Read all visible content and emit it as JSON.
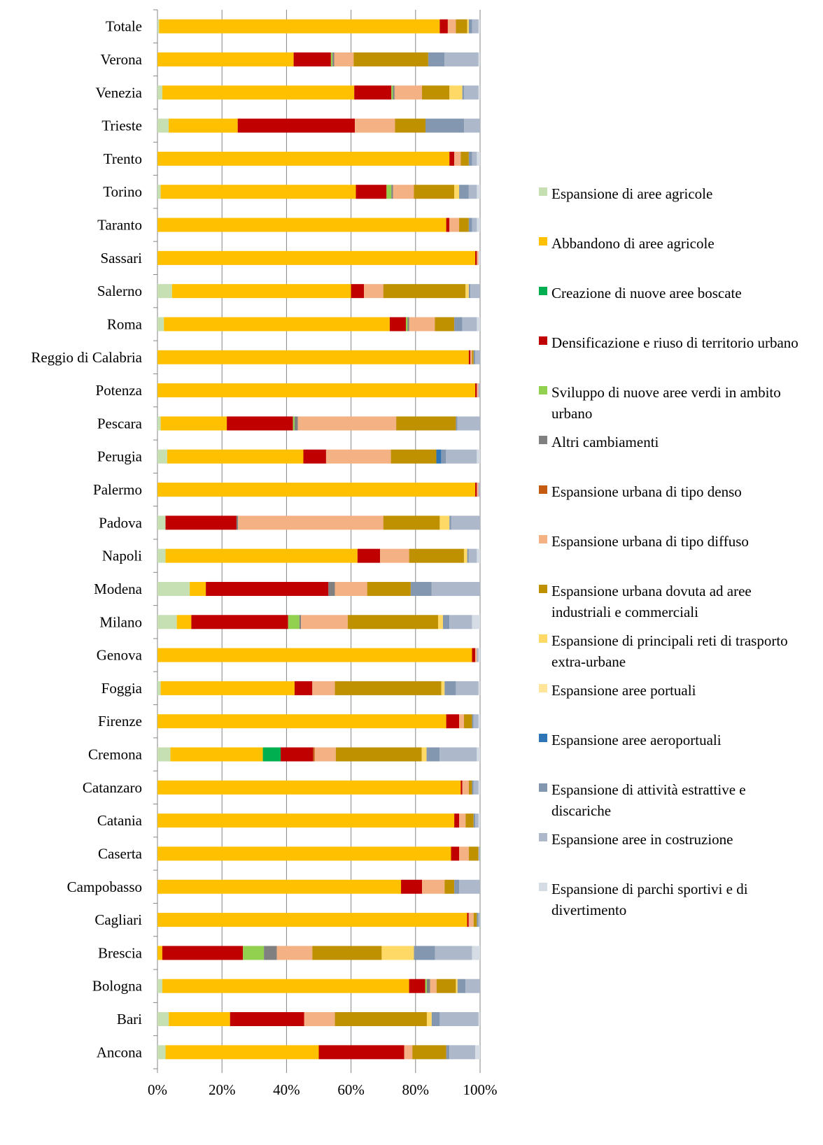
{
  "chart_data": {
    "type": "bar",
    "orientation": "horizontal",
    "stacked": "percent",
    "xlim": [
      0,
      100
    ],
    "x_ticks": [
      "0%",
      "20%",
      "40%",
      "60%",
      "80%",
      "100%"
    ],
    "grid": "vertical major gridlines",
    "legend_position": "right",
    "categories": [
      "Totale",
      "Verona",
      "Venezia",
      "Trieste",
      "Trento",
      "Torino",
      "Taranto",
      "Sassari",
      "Salerno",
      "Roma",
      "Reggio di Calabria",
      "Potenza",
      "Pescara",
      "Perugia",
      "Palermo",
      "Padova",
      "Napoli",
      "Modena",
      "Milano",
      "Genova",
      "Foggia",
      "Firenze",
      "Cremona",
      "Catanzaro",
      "Catania",
      "Caserta",
      "Campobasso",
      "Cagliari",
      "Brescia",
      "Bologna",
      "Bari",
      "Ancona"
    ],
    "series": [
      {
        "name": "Espansione di aree agricole",
        "color": "#c6e0b4",
        "values": [
          0.5,
          0,
          1.5,
          3.5,
          0,
          1,
          0,
          0,
          4.5,
          2,
          0,
          0,
          1,
          3,
          0,
          2.5,
          2.5,
          10,
          6,
          0,
          1,
          0,
          4,
          0,
          0,
          0,
          0,
          0,
          0,
          1.5,
          3.5,
          2.5
        ]
      },
      {
        "name": "Abbandono di aree agricole",
        "color": "#ffc000",
        "values": [
          87,
          42,
          59.5,
          21.5,
          90.5,
          60.5,
          89.5,
          98,
          55.5,
          70,
          96.5,
          98,
          20.5,
          42,
          98,
          0,
          59.5,
          5,
          4.5,
          97.5,
          41.5,
          89.5,
          28.5,
          94,
          92,
          91,
          75.5,
          95.5,
          1.5,
          76.5,
          19,
          47.5
        ]
      },
      {
        "name": "Creazione di nuove aree boscate",
        "color": "#00b050",
        "values": [
          0,
          0,
          0,
          0,
          0,
          0,
          0,
          0,
          0,
          0,
          0,
          0,
          0,
          0,
          0,
          0,
          0,
          0,
          0,
          0,
          0,
          0,
          5.5,
          0,
          0,
          0,
          0,
          0,
          0,
          0,
          0,
          0
        ]
      },
      {
        "name": "Densificazione e riuso di territorio urbano",
        "color": "#c00000",
        "values": [
          2.5,
          11.5,
          11.5,
          36.5,
          1.5,
          9.5,
          1,
          0.5,
          4,
          5,
          0.5,
          0.5,
          20.5,
          7,
          0.5,
          22,
          7,
          38,
          30,
          1,
          5.5,
          4,
          10,
          0.5,
          1.5,
          2.5,
          6.5,
          0.5,
          25,
          5,
          23,
          26.5
        ]
      },
      {
        "name": "Sviluppo di nuove aree verdi in ambito urbano",
        "color": "#92d050",
        "values": [
          0,
          0.5,
          0.5,
          0,
          0,
          1.5,
          0,
          0,
          0,
          0.5,
          0,
          0,
          0.5,
          0,
          0,
          0,
          0,
          0,
          3.5,
          0,
          0,
          0,
          0,
          0,
          0,
          0,
          0,
          0,
          6.5,
          0.5,
          0,
          0
        ]
      },
      {
        "name": "Altri cambiamenti",
        "color": "#808080",
        "values": [
          0,
          0.5,
          0.5,
          0,
          0,
          0.5,
          0,
          0,
          0,
          0.5,
          0,
          0,
          1,
          0,
          0,
          0.5,
          0,
          2,
          0.5,
          0,
          0,
          0,
          0,
          0,
          0,
          0,
          0,
          0,
          4,
          1,
          0,
          0
        ]
      },
      {
        "name": "Espansione urbana di tipo denso",
        "color": "#c55a11",
        "values": [
          0,
          0,
          0,
          0,
          0,
          0,
          0,
          0,
          0,
          0,
          0,
          0,
          0,
          0,
          0,
          0,
          0,
          0,
          0,
          0,
          0,
          0,
          0.5,
          0,
          0,
          0,
          0,
          0,
          0,
          0,
          0,
          0
        ]
      },
      {
        "name": "Espansione urbana di tipo diffuso",
        "color": "#f4b183",
        "values": [
          2.5,
          6,
          8.5,
          12.5,
          2,
          6.5,
          3,
          0.5,
          6,
          8,
          0.5,
          0.5,
          30.5,
          20,
          0.5,
          45,
          9,
          10,
          14.5,
          0.5,
          7,
          1.5,
          6.5,
          2,
          2,
          3,
          7,
          1.5,
          11,
          2,
          9.5,
          2.5
        ]
      },
      {
        "name": "Espansione urbana dovuta ad aree industriali e commerciali",
        "color": "#bf9000",
        "values": [
          3.5,
          23,
          8.5,
          9.5,
          2.5,
          12.5,
          3,
          0,
          25.5,
          6,
          0.5,
          0,
          18.5,
          14,
          0,
          17.5,
          17,
          13.5,
          28,
          0,
          33,
          2.5,
          26.5,
          1,
          2.5,
          3,
          3,
          1,
          21.5,
          6,
          28.5,
          10.5
        ]
      },
      {
        "name": "Espansione di principali reti di trasporto extra-urbane",
        "color": "#ffd966",
        "values": [
          0.5,
          0,
          4,
          0,
          0,
          1.5,
          0,
          0,
          1,
          0,
          0,
          0,
          0,
          0,
          0,
          3,
          1,
          0,
          1.5,
          0,
          1,
          0,
          1.5,
          0,
          0,
          0,
          0,
          0,
          10,
          0.5,
          1.5,
          0
        ]
      },
      {
        "name": "Espansione aree portuali",
        "color": "#ffe699",
        "values": [
          0,
          0,
          0,
          0,
          0,
          0,
          0,
          0,
          0,
          0,
          0,
          0,
          0,
          0,
          0,
          0,
          0,
          0,
          0,
          0,
          0,
          0,
          0,
          0,
          0,
          0,
          0,
          0,
          0,
          0,
          0,
          0
        ]
      },
      {
        "name": "Espansione aree aeroportuali",
        "color": "#2e75b6",
        "values": [
          0,
          0,
          0,
          0,
          0,
          0,
          0,
          0,
          0,
          0,
          0,
          0,
          0,
          1.5,
          0,
          0,
          0,
          0,
          0,
          0,
          0,
          0,
          0,
          0,
          0,
          0,
          0,
          0,
          0,
          0,
          0,
          0
        ]
      },
      {
        "name": "Espansione di attività estrattive e discariche",
        "color": "#8497b0",
        "values": [
          1,
          5,
          0.5,
          12,
          1,
          3,
          1,
          0,
          0.5,
          2.5,
          0.5,
          0,
          0.5,
          1.5,
          0,
          0.5,
          0.5,
          6.5,
          2,
          0,
          3.5,
          0.5,
          4,
          0.5,
          0.5,
          0,
          1.5,
          0.5,
          6.5,
          2.5,
          2.5,
          1
        ]
      },
      {
        "name": "Espansione aree in costruzione",
        "color": "#adb9ca",
        "values": [
          2,
          10.5,
          4.5,
          5,
          1.5,
          2.5,
          1.5,
          0,
          3,
          4.5,
          1.5,
          0.5,
          7,
          9.5,
          0.5,
          9,
          2.5,
          15,
          7,
          0.5,
          7,
          1.5,
          11.5,
          1.5,
          1,
          0.5,
          6.5,
          0.5,
          11.5,
          4.5,
          12,
          8
        ]
      },
      {
        "name": "Espansione di parchi sportivi e di divertimento",
        "color": "#d6dce4",
        "values": [
          0.5,
          0.5,
          0.5,
          0,
          1,
          1,
          1,
          0.5,
          0,
          1,
          0,
          0,
          0,
          1,
          0,
          0,
          1,
          0,
          2.5,
          0.5,
          0.5,
          0.5,
          1,
          0.5,
          0.5,
          0,
          0,
          0,
          2.5,
          0,
          0.5,
          1.5
        ]
      }
    ]
  }
}
